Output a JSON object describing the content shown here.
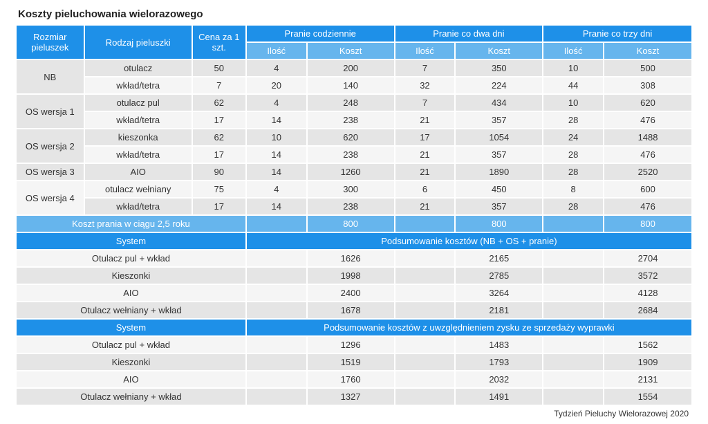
{
  "title": "Koszty pieluchowania wielorazowego",
  "footer": "Tydzień Pieluchy Wielorazowej 2020",
  "header": {
    "size": "Rozmiar pieluszek",
    "type": "Rodzaj pieluszki",
    "price": "Cena za 1 szt.",
    "groups": [
      "Pranie codziennie",
      "Pranie co dwa dni",
      "Pranie co trzy dni"
    ],
    "qty": "Ilość",
    "cost": "Koszt"
  },
  "sizes": [
    {
      "name": "NB",
      "rows": [
        {
          "type": "otulacz",
          "price": 50,
          "q1": 4,
          "c1": 200,
          "q2": 7,
          "c2": 350,
          "q3": 10,
          "c3": 500
        },
        {
          "type": "wkład/tetra",
          "price": 7,
          "q1": 20,
          "c1": 140,
          "q2": 32,
          "c2": 224,
          "q3": 44,
          "c3": 308
        }
      ]
    },
    {
      "name": "OS wersja 1",
      "rows": [
        {
          "type": "otulacz pul",
          "price": 62,
          "q1": 4,
          "c1": 248,
          "q2": 7,
          "c2": 434,
          "q3": 10,
          "c3": 620
        },
        {
          "type": "wkład/tetra",
          "price": 17,
          "q1": 14,
          "c1": 238,
          "q2": 21,
          "c2": 357,
          "q3": 28,
          "c3": 476
        }
      ]
    },
    {
      "name": "OS wersja 2",
      "rows": [
        {
          "type": "kieszonka",
          "price": 62,
          "q1": 10,
          "c1": 620,
          "q2": 17,
          "c2": 1054,
          "q3": 24,
          "c3": 1488
        },
        {
          "type": "wkład/tetra",
          "price": 17,
          "q1": 14,
          "c1": 238,
          "q2": 21,
          "c2": 357,
          "q3": 28,
          "c3": 476
        }
      ]
    },
    {
      "name": "OS wersja 3",
      "rows": [
        {
          "type": "AIO",
          "price": 90,
          "q1": 14,
          "c1": 1260,
          "q2": 21,
          "c2": 1890,
          "q3": 28,
          "c3": 2520
        }
      ]
    },
    {
      "name": "OS wersja 4",
      "rows": [
        {
          "type": "otulacz wełniany",
          "price": 75,
          "q1": 4,
          "c1": 300,
          "q2": 6,
          "c2": 450,
          "q3": 8,
          "c3": 600
        },
        {
          "type": "wkład/tetra",
          "price": 17,
          "q1": 14,
          "c1": 238,
          "q2": 21,
          "c2": 357,
          "q3": 28,
          "c3": 476
        }
      ]
    }
  ],
  "washing": {
    "label": "Koszt prania w ciągu 2,5 roku",
    "values": [
      800,
      800,
      800
    ]
  },
  "summary1": {
    "system_label": "System",
    "header": "Podsumowanie kosztów (NB + OS + pranie)",
    "rows": [
      {
        "name": "Otulacz pul + wkład",
        "v": [
          1626,
          2165,
          2704
        ]
      },
      {
        "name": "Kieszonki",
        "v": [
          1998,
          2785,
          3572
        ]
      },
      {
        "name": "AIO",
        "v": [
          2400,
          3264,
          4128
        ]
      },
      {
        "name": "Otulacz wełniany + wkład",
        "v": [
          1678,
          2181,
          2684
        ]
      }
    ]
  },
  "summary2": {
    "system_label": "System",
    "header": "Podsumowanie kosztów z uwzględnieniem zysku ze sprzedaży wyprawki",
    "rows": [
      {
        "name": "Otulacz pul + wkład",
        "v": [
          1296,
          1483,
          1562
        ]
      },
      {
        "name": "Kieszonki",
        "v": [
          1519,
          1793,
          1909
        ]
      },
      {
        "name": "AIO",
        "v": [
          1760,
          2032,
          2131
        ]
      },
      {
        "name": "Otulacz wełniany + wkład",
        "v": [
          1327,
          1491,
          1554
        ]
      }
    ]
  }
}
